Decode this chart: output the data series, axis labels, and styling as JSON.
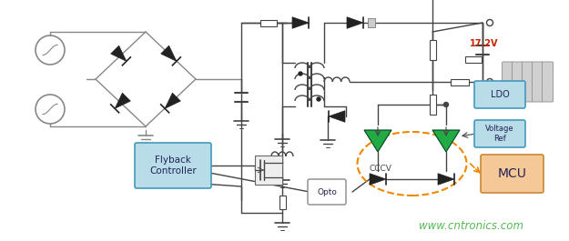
{
  "bg_color": "#ffffff",
  "watermark_text": "www.cntronics.com",
  "watermark_color": "#55bb55",
  "line_color": "#444444",
  "gray_color": "#888888",
  "dark_color": "#222222",
  "green_color": "#22aa44",
  "blue_fill": "#b8dde8",
  "blue_edge": "#4499bb",
  "mcu_fill": "#f5c898",
  "mcu_edge": "#cc8833",
  "orange_color": "#ee8800",
  "white": "#ffffff",
  "label_17v": "17.2V",
  "label_flyback": "Flyback\nController",
  "label_ldo": "LDO",
  "label_voltref": "Voltage\nRef",
  "label_mcu": "MCU",
  "label_opto": "Opto",
  "label_cccv": "CCCV"
}
